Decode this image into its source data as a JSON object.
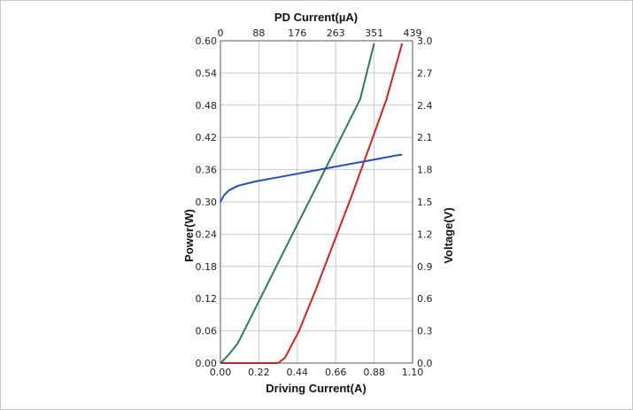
{
  "chart_data": {
    "type": "line",
    "title": "",
    "xlabel": "Driving Current(A)",
    "xlabel_top": "PD Current(µA)",
    "ylabel_left": "Power(W)",
    "ylabel_right": "Voltage(V)",
    "xlim": [
      0,
      1.1
    ],
    "ylim_left": [
      0,
      0.6
    ],
    "ylim_right": [
      0,
      3.0
    ],
    "grid": true,
    "x_ticks": [
      "0.00",
      "0.22",
      "0.44",
      "0.66",
      "0.88",
      "1.10"
    ],
    "x_tick_values": [
      0,
      0.22,
      0.44,
      0.66,
      0.88,
      1.1
    ],
    "top_ticks": [
      "0",
      "88",
      "176",
      "263",
      "351",
      "439"
    ],
    "left_ticks": [
      "0.00",
      "0.06",
      "0.12",
      "0.18",
      "0.24",
      "0.30",
      "0.36",
      "0.42",
      "0.48",
      "0.54",
      "0.60"
    ],
    "left_tick_values": [
      0,
      0.06,
      0.12,
      0.18,
      0.24,
      0.3,
      0.36,
      0.42,
      0.48,
      0.54,
      0.6
    ],
    "right_ticks": [
      "0.0",
      "0.3",
      "0.6",
      "0.9",
      "1.2",
      "1.5",
      "1.8",
      "2.1",
      "2.4",
      "2.7",
      "3.0"
    ],
    "series": [
      {
        "axis": "left",
        "color": "#2e7d4f",
        "x": [
          0.0,
          0.02,
          0.05,
          0.1,
          0.2,
          0.3,
          0.4,
          0.5,
          0.6,
          0.7,
          0.8,
          0.88
        ],
        "y": [
          0.0,
          0.006,
          0.017,
          0.037,
          0.102,
          0.167,
          0.232,
          0.296,
          0.361,
          0.426,
          0.491,
          0.595
        ]
      },
      {
        "axis": "left",
        "color": "#d42020",
        "x": [
          0.0,
          0.33,
          0.37,
          0.45,
          0.55,
          0.65,
          0.75,
          0.85,
          0.95,
          1.04
        ],
        "y": [
          0.0,
          0.0,
          0.01,
          0.06,
          0.14,
          0.225,
          0.31,
          0.4,
          0.49,
          0.595
        ]
      },
      {
        "axis": "right",
        "color": "#1f4fbf",
        "x": [
          0.0,
          0.02,
          0.05,
          0.1,
          0.2,
          0.3,
          0.4,
          0.5,
          0.6,
          0.7,
          0.8,
          0.9,
          1.0,
          1.04
        ],
        "y": [
          1.5,
          1.56,
          1.61,
          1.65,
          1.69,
          1.72,
          1.75,
          1.78,
          1.81,
          1.84,
          1.87,
          1.9,
          1.93,
          1.94
        ]
      }
    ]
  }
}
